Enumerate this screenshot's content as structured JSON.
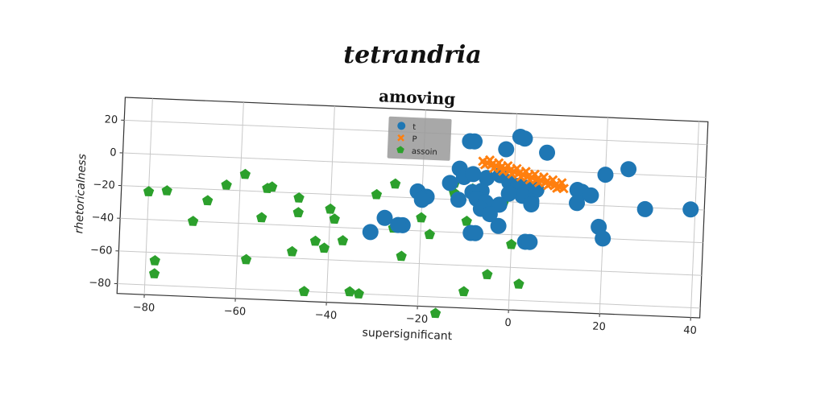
{
  "chart_data": {
    "type": "scatter",
    "suptitle": "tetrandria",
    "title": "amoving",
    "xlabel": "supersignificant",
    "ylabel": "rhetoricalness",
    "xlim": [
      -86,
      42
    ],
    "ylim": [
      -86,
      34
    ],
    "xticks": [
      -80,
      -60,
      -40,
      -20,
      0,
      20,
      40
    ],
    "yticks": [
      20,
      0,
      -20,
      -40,
      -60,
      -80
    ],
    "xtick_labels": [
      "−80",
      "−60",
      "−40",
      "−20",
      "0",
      "20",
      "40"
    ],
    "ytick_labels": [
      "20",
      "0",
      "−20",
      "−40",
      "−60",
      "−80"
    ],
    "grid": true,
    "legend_position": "top-center",
    "series": [
      {
        "name": "t",
        "marker": "circle",
        "color": "#1f77b4",
        "points": [
          [
            1,
            20
          ],
          [
            2,
            19
          ],
          [
            -10,
            16
          ],
          [
            -9,
            16
          ],
          [
            -2,
            12
          ],
          [
            7,
            11
          ],
          [
            -12,
            -1
          ],
          [
            -14,
            -10
          ],
          [
            -11,
            -6
          ],
          [
            -9,
            -4
          ],
          [
            -6,
            -6
          ],
          [
            -3,
            -4
          ],
          [
            -1,
            -8
          ],
          [
            1,
            -10
          ],
          [
            3,
            -11
          ],
          [
            5,
            -12
          ],
          [
            2,
            -16
          ],
          [
            4,
            -19
          ],
          [
            4,
            -21
          ],
          [
            -1,
            -15
          ],
          [
            -7,
            -14
          ],
          [
            -9,
            -15
          ],
          [
            -8,
            -19
          ],
          [
            -6,
            -21
          ],
          [
            -7,
            -25
          ],
          [
            -3,
            -22
          ],
          [
            -5,
            -28
          ],
          [
            -12,
            -20
          ],
          [
            -21,
            -16
          ],
          [
            -19,
            -19
          ],
          [
            -20,
            -21
          ],
          [
            -28,
            -33
          ],
          [
            -24,
            -37
          ],
          [
            -25,
            -37
          ],
          [
            -31,
            -42
          ],
          [
            -9,
            -40
          ],
          [
            -8,
            -40
          ],
          [
            -3,
            -35
          ],
          [
            3,
            -44
          ],
          [
            4,
            -44
          ],
          [
            14,
            -11
          ],
          [
            15,
            -12
          ],
          [
            17,
            -14
          ],
          [
            14,
            -19
          ],
          [
            20,
            -1
          ],
          [
            25,
            3
          ],
          [
            19,
            -33
          ],
          [
            20,
            -40
          ],
          [
            29,
            -21
          ],
          [
            39,
            -20
          ]
        ]
      },
      {
        "name": "P",
        "marker": "cross",
        "color": "#ff7f0e",
        "points": [
          [
            -7,
            4
          ],
          [
            -6,
            3.2
          ],
          [
            -5,
            2.4
          ],
          [
            -4,
            1.6
          ],
          [
            -3,
            0.8
          ],
          [
            -2,
            0
          ],
          [
            -1,
            -0.8
          ],
          [
            0,
            -1.6
          ],
          [
            1,
            -2.4
          ],
          [
            2,
            -3.2
          ],
          [
            3,
            -4
          ],
          [
            4,
            -4.8
          ],
          [
            5,
            -5.6
          ],
          [
            6,
            -6.4
          ],
          [
            7,
            -7.2
          ],
          [
            8,
            -8
          ],
          [
            9,
            -8.8
          ],
          [
            10,
            -9.6
          ],
          [
            11,
            -10.4
          ],
          [
            -6.5,
            2
          ],
          [
            -4.5,
            0
          ],
          [
            -2.5,
            -1.5
          ],
          [
            -0.5,
            -3
          ],
          [
            1.5,
            -4.5
          ],
          [
            3.5,
            -6
          ],
          [
            5.5,
            -7.5
          ],
          [
            7.5,
            -9
          ],
          [
            9.5,
            -10.5
          ],
          [
            -5.5,
            5
          ],
          [
            -3.5,
            3.5
          ],
          [
            -1.5,
            2
          ],
          [
            0.5,
            0.5
          ],
          [
            2.5,
            -1
          ],
          [
            4.5,
            -2.5
          ],
          [
            6.5,
            -4
          ],
          [
            8.5,
            -5.5
          ],
          [
            10.5,
            -7
          ]
        ]
      },
      {
        "name": "assoin",
        "marker": "pentagon",
        "color": "#2ca02c",
        "points": [
          [
            -80,
            -23
          ],
          [
            -76,
            -22
          ],
          [
            -67,
            -27
          ],
          [
            -70,
            -40
          ],
          [
            -63,
            -17
          ],
          [
            -59,
            -10
          ],
          [
            -54,
            -18
          ],
          [
            -53,
            -17
          ],
          [
            -55,
            -36
          ],
          [
            -47,
            -23
          ],
          [
            -47,
            -32
          ],
          [
            -40,
            -29
          ],
          [
            -39,
            -35
          ],
          [
            -48,
            -56
          ],
          [
            -43,
            -49
          ],
          [
            -41,
            -53
          ],
          [
            -37,
            -48
          ],
          [
            -58,
            -62
          ],
          [
            -78,
            -65
          ],
          [
            -78,
            -73
          ],
          [
            -45,
            -80
          ],
          [
            -35,
            -79
          ],
          [
            -33,
            -80
          ],
          [
            -30,
            -19
          ],
          [
            -26,
            -12
          ],
          [
            -26,
            -39
          ],
          [
            -20,
            -32
          ],
          [
            -18,
            -42
          ],
          [
            -24,
            -56
          ],
          [
            -13,
            -10
          ],
          [
            -13,
            -16
          ],
          [
            -10,
            -33
          ],
          [
            -9,
            -13
          ],
          [
            -2,
            -20
          ],
          [
            0,
            -46
          ],
          [
            -10,
            -76
          ],
          [
            -5,
            -65
          ],
          [
            2,
            -70
          ],
          [
            -16,
            -90
          ]
        ]
      }
    ]
  }
}
